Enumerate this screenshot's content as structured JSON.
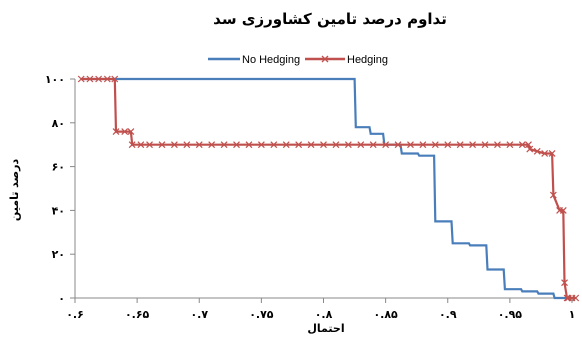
{
  "chart_data": {
    "type": "line",
    "title": "تداوم درصد تامین کشاورزی سد",
    "xlabel": "احتمال",
    "ylabel": "درصد تامین",
    "xlim": [
      0.6,
      1.0
    ],
    "ylim": [
      0,
      100
    ],
    "x_ticks": [
      0.6,
      0.65,
      0.7,
      0.75,
      0.8,
      0.85,
      0.9,
      0.95,
      1.0
    ],
    "x_tick_labels": [
      "۰.۶",
      "۰.۶۵",
      "۰.۷",
      "۰.۷۵",
      "۰.۸",
      "۰.۸۵",
      "۰.۹",
      "۰.۹۵",
      "۱"
    ],
    "y_ticks": [
      0,
      20,
      40,
      60,
      80,
      100
    ],
    "y_tick_labels": [
      "۰",
      "۲۰",
      "۴۰",
      "۶۰",
      "۸۰",
      "۱۰۰"
    ],
    "grid": false,
    "legend_position": "top",
    "series": [
      {
        "name": "No Hedging",
        "color": "#4a7ebb",
        "marker": "none",
        "x": [
          0.605,
          0.825,
          0.826,
          0.837,
          0.838,
          0.848,
          0.849,
          0.862,
          0.863,
          0.876,
          0.877,
          0.889,
          0.89,
          0.903,
          0.904,
          0.917,
          0.918,
          0.931,
          0.932,
          0.945,
          0.946,
          0.959,
          0.96,
          0.972,
          0.973,
          0.985,
          0.986,
          1.0
        ],
        "y": [
          100,
          100,
          78,
          78,
          75,
          75,
          70,
          70,
          66,
          66,
          65,
          65,
          35,
          35,
          25,
          25,
          24,
          24,
          13,
          13,
          4,
          4,
          3,
          3,
          2,
          2,
          0,
          0
        ]
      },
      {
        "name": "Hedging",
        "color": "#c0504d",
        "marker": "x",
        "x": [
          0.605,
          0.612,
          0.619,
          0.626,
          0.632,
          0.633,
          0.64,
          0.645,
          0.646,
          0.653,
          0.66,
          0.67,
          0.68,
          0.69,
          0.7,
          0.71,
          0.72,
          0.73,
          0.74,
          0.75,
          0.76,
          0.77,
          0.78,
          0.79,
          0.8,
          0.81,
          0.82,
          0.83,
          0.84,
          0.85,
          0.86,
          0.87,
          0.88,
          0.89,
          0.9,
          0.91,
          0.92,
          0.93,
          0.94,
          0.95,
          0.96,
          0.965,
          0.966,
          0.972,
          0.978,
          0.984,
          0.985,
          0.99,
          0.993,
          0.994,
          0.996,
          0.997,
          1.0,
          1.003
        ],
        "y": [
          100,
          100,
          100,
          100,
          100,
          76,
          76,
          76,
          70,
          70,
          70,
          70,
          70,
          70,
          70,
          70,
          70,
          70,
          70,
          70,
          70,
          70,
          70,
          70,
          70,
          70,
          70,
          70,
          70,
          70,
          70,
          70,
          70,
          70,
          70,
          70,
          70,
          70,
          70,
          70,
          70,
          70,
          68,
          67,
          66,
          66,
          47,
          40,
          40,
          7,
          0,
          0,
          0,
          0
        ]
      }
    ]
  }
}
